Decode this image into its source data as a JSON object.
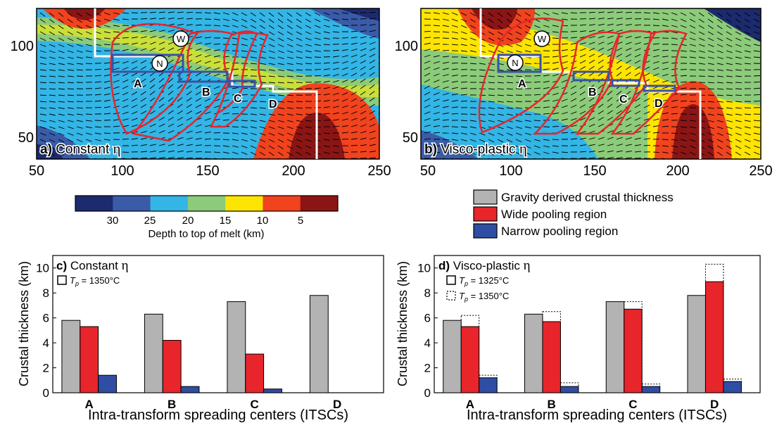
{
  "colors": {
    "bar_gravity": "#b3b3b3",
    "bar_wide": "#e8252b",
    "bar_narrow": "#2f4ea3",
    "outline_wide": "#e8252b",
    "outline_narrow": "#3a52a5",
    "plate_boundary": "#ffffff",
    "depth_scale": [
      "#1c2a6e",
      "#3a5ba8",
      "#33b5e5",
      "#8ccb7a",
      "#fde402",
      "#f0431e",
      "#8b1515"
    ]
  },
  "map_panels": {
    "a": {
      "label": "a)",
      "title_text": "Constant",
      "title_symbol": "η",
      "x_ticks": [
        "50",
        "100",
        "150",
        "200",
        "250"
      ],
      "y_ticks": [
        "50",
        "100"
      ]
    },
    "b": {
      "label": "b)",
      "title_text": "Visco-plastic",
      "title_symbol": "η",
      "x_ticks": [
        "50",
        "100",
        "150",
        "200",
        "250"
      ],
      "y_ticks": [
        "50",
        "100"
      ]
    },
    "markers": {
      "west": "W",
      "north": "N",
      "itscs": [
        "A",
        "B",
        "C",
        "D"
      ]
    }
  },
  "colorbar": {
    "tick_labels": [
      "30",
      "25",
      "20",
      "15",
      "10",
      "5"
    ],
    "label": "Depth to top of melt (km)"
  },
  "legend": {
    "entries": [
      "Gravity derived crustal thickness",
      "Wide pooling region",
      "Narrow pooling region"
    ]
  },
  "chart_data": [
    {
      "type": "bar",
      "panel": "c)",
      "title_text": "Constant",
      "title_symbol": "η",
      "annotation": {
        "var": "T",
        "sub": "p",
        "text": " = 1350°C"
      },
      "ylabel": "Crustal thickness (km)",
      "xlabel": "Intra-transform spreading centers (ITSCs)",
      "ylim": [
        0,
        11
      ],
      "yticks": [
        0,
        2,
        4,
        6,
        8,
        10
      ],
      "categories": [
        "A",
        "B",
        "C",
        "D"
      ],
      "series": [
        {
          "name": "Gravity derived crustal thickness",
          "values": [
            5.8,
            6.3,
            7.3,
            7.8
          ]
        },
        {
          "name": "Wide pooling region",
          "values": [
            5.3,
            4.2,
            3.1,
            0
          ]
        },
        {
          "name": "Narrow pooling region",
          "values": [
            1.4,
            0.5,
            0.3,
            0
          ]
        }
      ]
    },
    {
      "type": "bar",
      "panel": "d)",
      "title_text": "Visco-plastic",
      "title_symbol": "η",
      "annotations": [
        {
          "var": "T",
          "sub": "p",
          "text": " = 1325°C"
        },
        {
          "var": "T",
          "sub": "p",
          "text": " = 1350°C"
        }
      ],
      "ylabel": "Crustal thickness (km)",
      "xlabel": "Intra-transform spreading centers (ITSCs)",
      "ylim": [
        0,
        11
      ],
      "yticks": [
        0,
        2,
        4,
        6,
        8,
        10
      ],
      "categories": [
        "A",
        "B",
        "C",
        "D"
      ],
      "series": [
        {
          "name": "Gravity derived crustal thickness",
          "values": [
            5.8,
            6.3,
            7.3,
            7.8
          ]
        },
        {
          "name": "Wide pooling region",
          "values": [
            5.3,
            5.7,
            6.7,
            8.9
          ]
        },
        {
          "name": "Narrow pooling region",
          "values": [
            1.2,
            0.5,
            0.5,
            0.9
          ]
        }
      ],
      "dotted_series_1350C": [
        {
          "name": "Wide pooling region",
          "values": [
            6.2,
            6.5,
            7.3,
            10.3
          ]
        },
        {
          "name": "Narrow pooling region",
          "values": [
            1.4,
            0.8,
            0.7,
            1.1
          ]
        }
      ]
    }
  ]
}
